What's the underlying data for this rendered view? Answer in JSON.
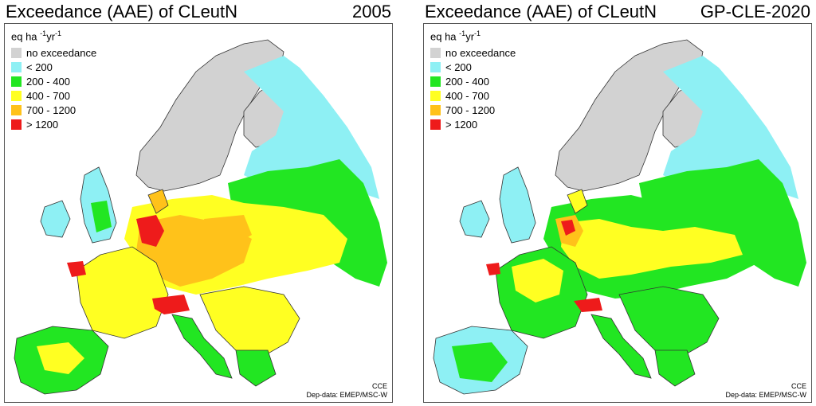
{
  "colors": {
    "no_exceedance": "#d2d2d2",
    "lt200": "#8ef0f4",
    "r200_400": "#22e622",
    "r400_700": "#ffff22",
    "r700_1200": "#ffc21a",
    "gt1200": "#ee1b1b",
    "land_outline": "#333333",
    "sea": "#ffffff"
  },
  "legend": {
    "unit_base": "eq ha",
    "unit_exp1": "-1",
    "unit_mid": "yr",
    "unit_exp2": "-1",
    "items": [
      {
        "label": "no exceedance",
        "color_key": "no_exceedance"
      },
      {
        "label": "< 200",
        "color_key": "lt200"
      },
      {
        "label": "200 - 400",
        "color_key": "r200_400"
      },
      {
        "label": "400 - 700",
        "color_key": "r400_700"
      },
      {
        "label": "700 - 1200",
        "color_key": "r700_1200"
      },
      {
        "label": "> 1200",
        "color_key": "gt1200"
      }
    ]
  },
  "panels": [
    {
      "title": "Exceedance (AAE) of CLeutN",
      "tag": "2005",
      "credit_org": "CCE",
      "credit_data": "Dep-data: EMEP/MSC-W"
    },
    {
      "title": "Exceedance (AAE) of CLeutN",
      "tag": "GP-CLE-2020",
      "credit_org": "CCE",
      "credit_data": "Dep-data: EMEP/MSC-W"
    }
  ]
}
